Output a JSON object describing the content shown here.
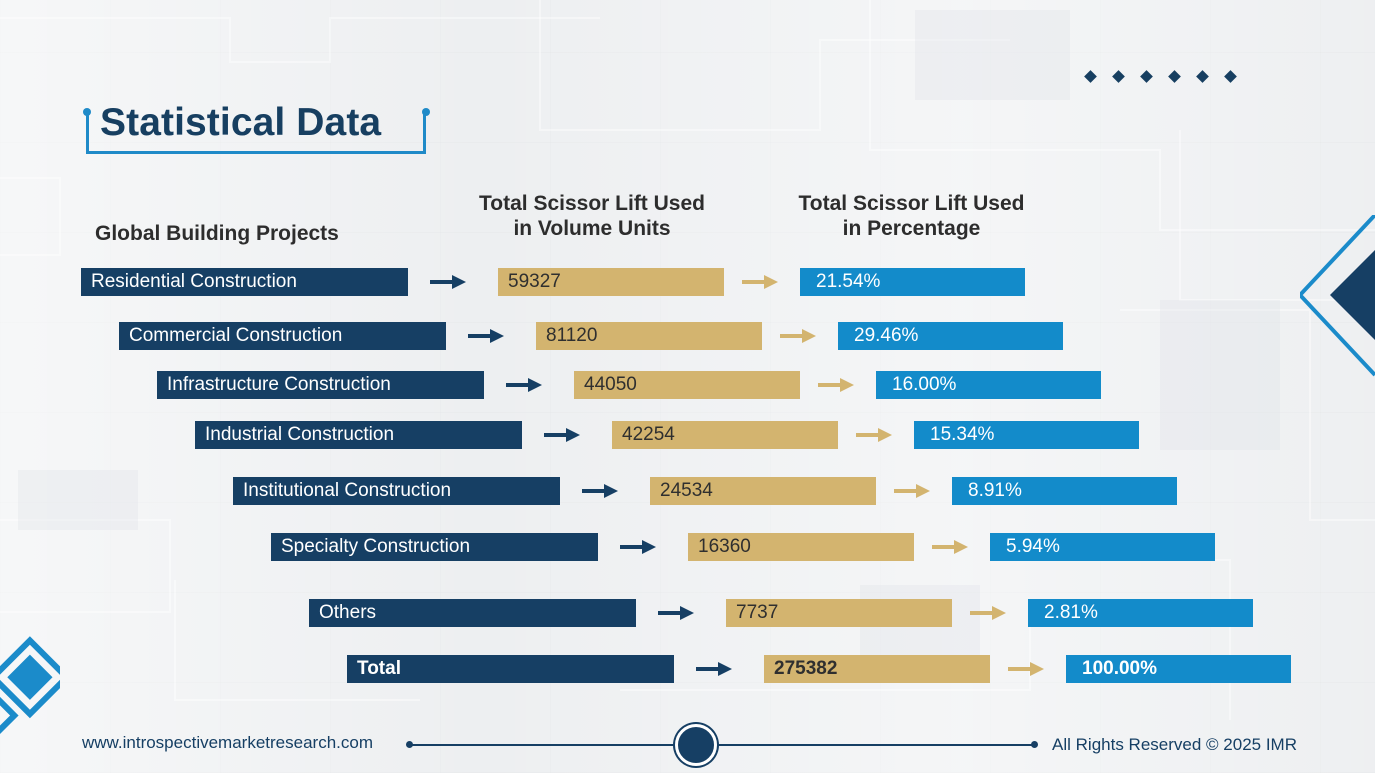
{
  "header": {
    "title": "Statistical Data"
  },
  "columns": {
    "left": "Global Building Projects",
    "middle_line1": "Total Scissor Lift Used",
    "middle_line2": "in Volume Units",
    "right_line1": "Total Scissor Lift Used",
    "right_line2": "in Percentage"
  },
  "rows": [
    {
      "label": "Residential Construction",
      "volume": "59327",
      "percent": "21.54%"
    },
    {
      "label": "Commercial Construction",
      "volume": "81120",
      "percent": "29.46%"
    },
    {
      "label": "Infrastructure Construction",
      "volume": "44050",
      "percent": "16.00%"
    },
    {
      "label": "Industrial Construction",
      "volume": "42254",
      "percent": "15.34%"
    },
    {
      "label": "Institutional Construction",
      "volume": "24534",
      "percent": "8.91%"
    },
    {
      "label": "Specialty Construction",
      "volume": "16360",
      "percent": "5.94%"
    },
    {
      "label": "Others",
      "volume": "7737",
      "percent": "2.81%"
    },
    {
      "label": "Total",
      "volume": "275382",
      "percent": "100.00%"
    }
  ],
  "footer": {
    "website": "www.introspectivemarketresearch.com",
    "rights": "All Rights Reserved © 2025 IMR"
  },
  "colors": {
    "label_bar": "#163f64",
    "volume_bar": "#d3b46f",
    "percent_bar": "#138bca",
    "arrow_dark": "#163f64",
    "arrow_gold": "#d3b46f",
    "title": "#173f61",
    "frame": "#1f8ac8"
  },
  "chart_data": {
    "type": "table",
    "title": "Statistical Data",
    "columns": [
      "Global Building Projects",
      "Total Scissor Lift Used in Volume Units",
      "Total Scissor Lift Used in Percentage"
    ],
    "rows": [
      [
        "Residential Construction",
        59327,
        21.54
      ],
      [
        "Commercial Construction",
        81120,
        29.46
      ],
      [
        "Infrastructure Construction",
        44050,
        16.0
      ],
      [
        "Industrial Construction",
        42254,
        15.34
      ],
      [
        "Institutional Construction",
        24534,
        8.91
      ],
      [
        "Specialty Construction",
        16360,
        5.94
      ],
      [
        "Others",
        7737,
        2.81
      ],
      [
        "Total",
        275382,
        100.0
      ]
    ]
  }
}
